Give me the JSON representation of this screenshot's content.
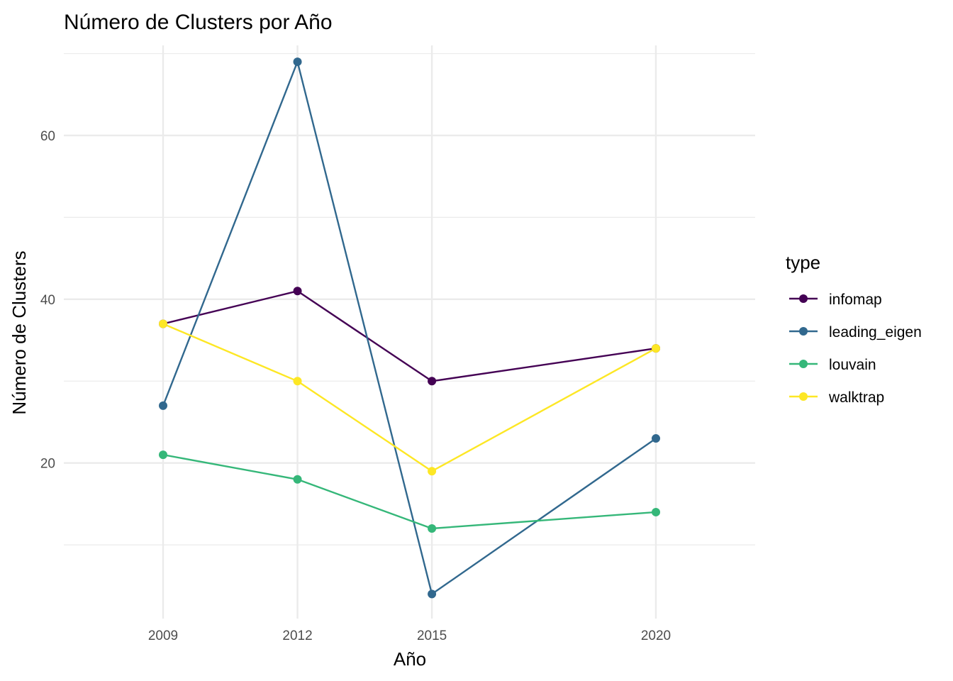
{
  "chart_data": {
    "type": "line",
    "title": "Número de Clusters por Año",
    "xlabel": "Año",
    "ylabel": "Número de Clusters",
    "x": [
      2009,
      2012,
      2015,
      2020
    ],
    "x_tick_labels": [
      "2009",
      "2012",
      "2015",
      "2020"
    ],
    "y_ticks": [
      20,
      40,
      60
    ],
    "y_tick_labels": [
      "20",
      "40",
      "60"
    ],
    "ylim": [
      1,
      71
    ],
    "grid": true,
    "legend": {
      "title": "type",
      "placement": "right"
    },
    "series": [
      {
        "name": "infomap",
        "color": "#440154",
        "values": [
          37,
          41,
          30,
          34
        ]
      },
      {
        "name": "leading_eigen",
        "color": "#31688E",
        "values": [
          27,
          69,
          4,
          23
        ]
      },
      {
        "name": "louvain",
        "color": "#35B779",
        "values": [
          21,
          18,
          12,
          14
        ]
      },
      {
        "name": "walktrap",
        "color": "#FDE725",
        "values": [
          37,
          30,
          19,
          34
        ]
      }
    ]
  }
}
